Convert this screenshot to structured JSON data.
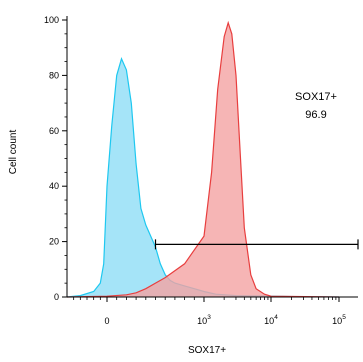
{
  "chart_data": {
    "type": "area",
    "xlabel": "SOX17+",
    "ylabel": "Cell count",
    "ylim": [
      0,
      100
    ],
    "y_ticks": [
      0,
      20,
      40,
      60,
      80,
      100
    ],
    "x_ticks": [
      {
        "value": 0,
        "base": "0",
        "exp": ""
      },
      {
        "value": 1000,
        "base": "10",
        "exp": "3"
      },
      {
        "value": 10000,
        "base": "10",
        "exp": "4"
      },
      {
        "value": 100000,
        "base": "10",
        "exp": "5"
      }
    ],
    "x_scale": "biexponential",
    "series": [
      {
        "color": "#1EC8F0",
        "fill": "#8EDDF6",
        "x": [
          -1200,
          -800,
          -400,
          -200,
          -100,
          0,
          50,
          100,
          150,
          200,
          250,
          300,
          350,
          400,
          450,
          500,
          550,
          600,
          650,
          700,
          800,
          900,
          1000,
          1500,
          3000,
          10000,
          30000,
          100000
        ],
        "values": [
          0,
          0.5,
          2,
          5,
          12,
          40,
          62,
          80,
          86,
          82,
          70,
          48,
          32,
          26,
          22,
          18,
          12,
          8,
          6,
          5,
          4,
          3,
          2,
          1,
          0.5,
          0.3,
          0.1,
          0
        ]
      },
      {
        "color": "#E83E3E",
        "fill": "#F4A3A3",
        "x": [
          -1200,
          0,
          200,
          300,
          400,
          500,
          600,
          800,
          1000,
          1300,
          1600,
          2000,
          2300,
          2600,
          3000,
          3500,
          4000,
          5000,
          6000,
          8000,
          10000,
          100000
        ],
        "values": [
          0,
          0.3,
          0.8,
          1.5,
          3,
          5,
          7,
          12,
          22,
          45,
          75,
          94,
          99,
          95,
          80,
          50,
          25,
          8,
          3,
          1,
          0.3,
          0
        ]
      }
    ],
    "gate": {
      "name": "SOX17+",
      "value": "96.9",
      "x_start": 500,
      "x_end": 250000,
      "y": 19
    }
  }
}
